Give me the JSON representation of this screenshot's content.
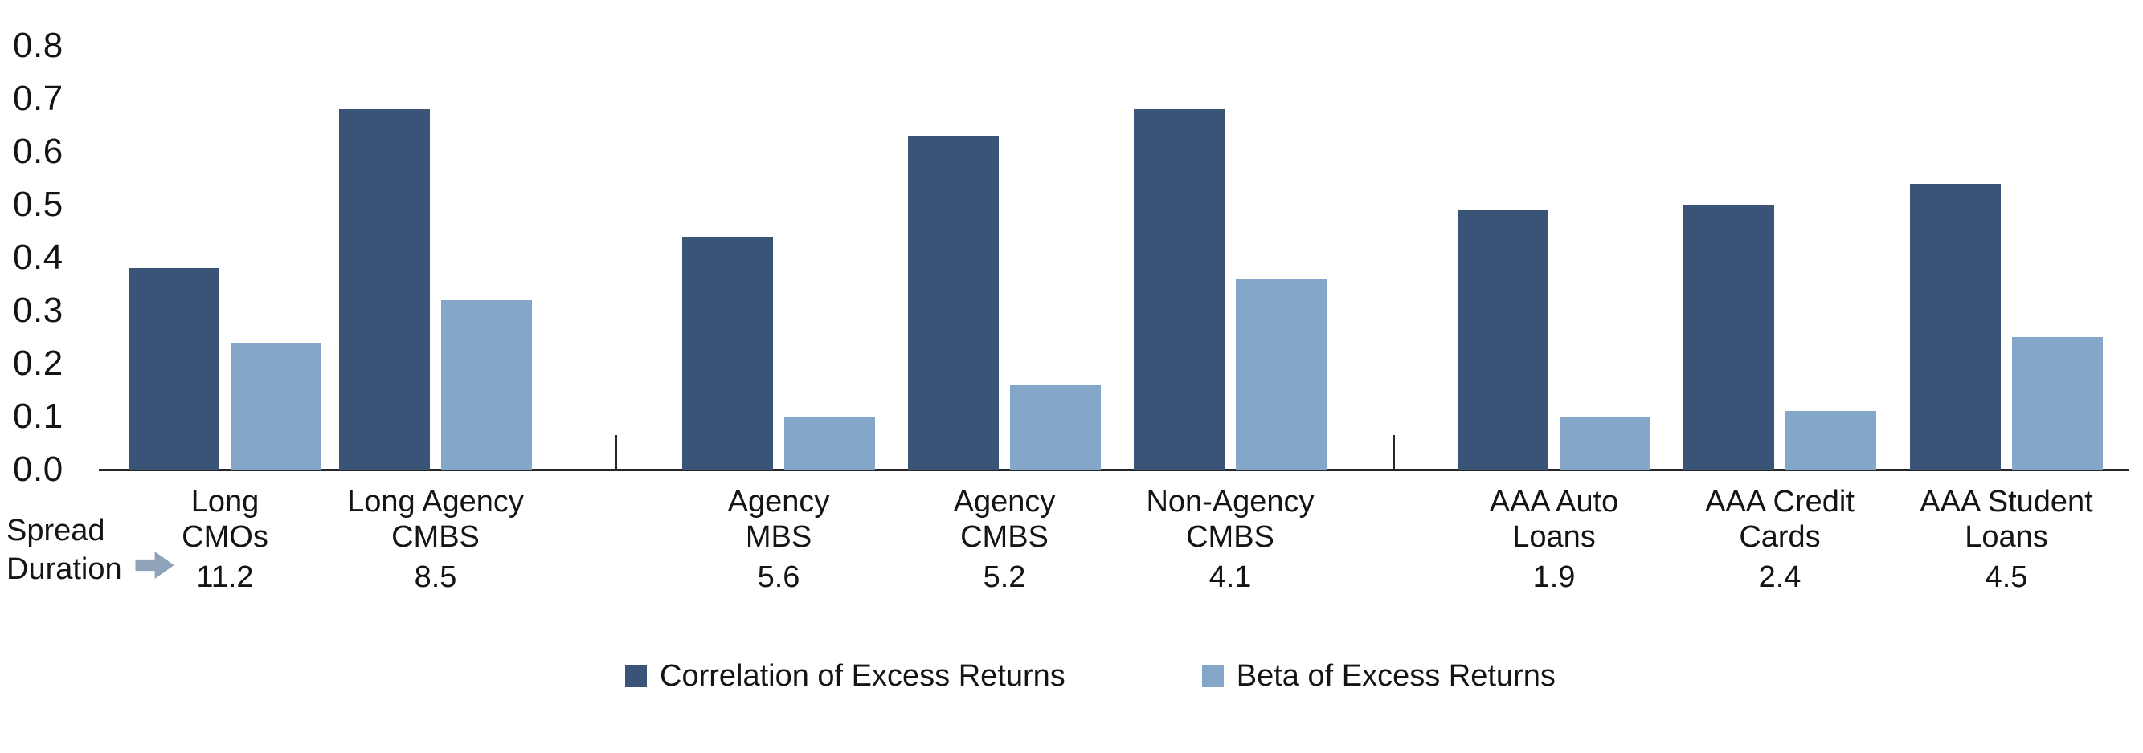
{
  "chart_data": {
    "type": "bar",
    "title": "",
    "xlabel": "",
    "ylabel": "",
    "categories": [
      "Long CMOs",
      "Long Agency CMBS",
      "Agency MBS",
      "Agency CMBS",
      "Non-Agency CMBS",
      "AAA Auto Loans",
      "AAA Credit Cards",
      "AAA Student Loans"
    ],
    "category_label_lines": [
      [
        "Long",
        "CMOs"
      ],
      [
        "Long Agency",
        "CMBS"
      ],
      [
        "Agency",
        "MBS"
      ],
      [
        "Agency",
        "CMBS"
      ],
      [
        "Non-Agency",
        "CMBS"
      ],
      [
        "AAA Auto",
        "Loans"
      ],
      [
        "AAA Credit",
        "Cards"
      ],
      [
        "AAA Student",
        "Loans"
      ]
    ],
    "spread_durations": [
      "11.2",
      "8.5",
      "5.6",
      "5.2",
      "4.1",
      "1.9",
      "2.4",
      "4.5"
    ],
    "series": [
      {
        "name": "Correlation of Excess Returns",
        "color": "#3A5478",
        "values": [
          0.38,
          0.68,
          0.44,
          0.63,
          0.68,
          0.49,
          0.5,
          0.54
        ]
      },
      {
        "name": "Beta of Excess Returns",
        "color": "#84A6C9",
        "values": [
          0.24,
          0.32,
          0.1,
          0.16,
          0.36,
          0.1,
          0.11,
          0.25
        ]
      }
    ],
    "y_axis": {
      "min": 0.0,
      "max": 0.8,
      "step": 0.1,
      "tick_labels": [
        "0.0",
        "0.1",
        "0.2",
        "0.3",
        "0.4",
        "0.5",
        "0.6",
        "0.7",
        "0.8"
      ]
    },
    "grid": "off",
    "legend_position": "bottom",
    "group_sections": [
      [
        "Long CMOs",
        "Long Agency CMBS"
      ],
      [
        "Agency MBS",
        "Agency CMBS",
        "Non-Agency CMBS"
      ],
      [
        "AAA Auto Loans",
        "AAA Credit Cards",
        "AAA Student Loans"
      ]
    ],
    "x_axis_note": {
      "line1": "Spread",
      "line2": "Duration",
      "arrow_icon": "right-arrow",
      "arrow_color": "#8FA3B8"
    },
    "axis_color": "#262626",
    "text_color": "#141414"
  }
}
